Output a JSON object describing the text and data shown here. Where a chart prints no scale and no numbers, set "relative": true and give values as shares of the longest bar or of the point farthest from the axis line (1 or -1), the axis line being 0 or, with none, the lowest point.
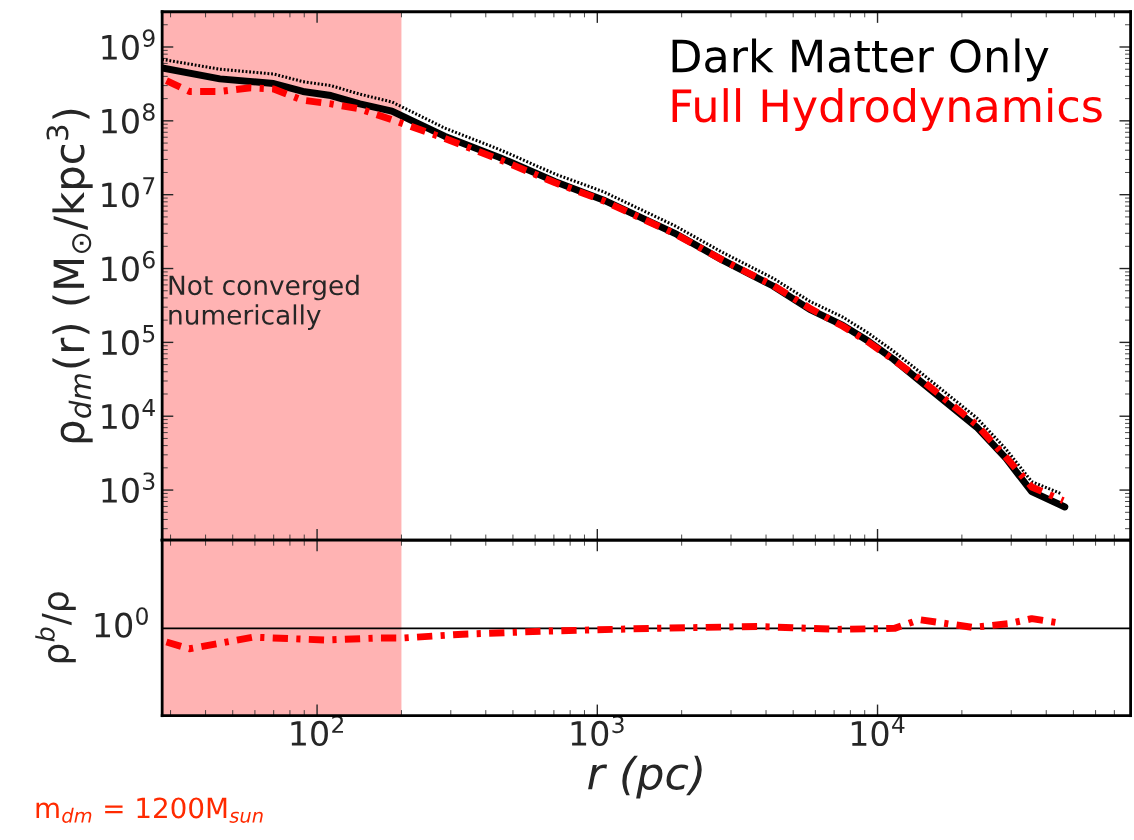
{
  "chart_data": [
    {
      "type": "line",
      "log": "xy",
      "ylabel": "ρ$_{dm}$(r) (M$_{⊙}$/kpc$^{3}$)",
      "legend": "top right",
      "tick_labels": "y",
      "grid": false,
      "xlim": [
        28,
        80000
      ],
      "xticks": [
        100,
        1000,
        10000
      ],
      "ylim": [
        210,
        3000000000
      ],
      "yticks": [
        {
          "value": 1000,
          "label": "10$^{3}$"
        },
        {
          "value": 10000,
          "label": "10$^{4}$"
        },
        {
          "value": 100000,
          "label": "10$^{5}$"
        },
        {
          "value": 1000000,
          "label": "10$^{6}$"
        },
        {
          "value": 10000000,
          "label": "10$^{7}$"
        },
        {
          "value": 100000000,
          "label": "10$^{8}$"
        },
        {
          "value": 1000000000,
          "label": "10$^{9}$"
        }
      ],
      "bands": [
        {
          "axis": "x",
          "from": 28,
          "to": 200,
          "label": "Not converged\nnumerically",
          "color": "#ffb3b3"
        }
      ],
      "series": [
        {
          "name": "Dark Matter Only",
          "color": "#000000",
          "line_style": "solid",
          "x": [
            28,
            45,
            70,
            89,
            112,
            142,
            185,
            285,
            447,
            708,
            1050,
            1890,
            2800,
            4240,
            5730,
            7520,
            9230,
            11400,
            14500,
            22600,
            28700,
            35500,
            46600
          ],
          "values": [
            520000000,
            370000000,
            320000000,
            250000000,
            220000000,
            170000000,
            135000000,
            62000000,
            32000000,
            15000000,
            8500000,
            3000000,
            1300000,
            580000,
            280000,
            170000,
            105000,
            59000,
            28000,
            7100,
            2700,
            950,
            590
          ]
        },
        {
          "color": "#000000",
          "line_style": "dotted",
          "x": [
            28,
            45,
            70,
            89,
            112,
            142,
            185,
            285,
            447,
            708,
            1050,
            1890,
            2800,
            4240,
            5730,
            7520,
            9230,
            11400,
            14500,
            22600,
            28700,
            35500,
            45000
          ],
          "values": [
            680000000,
            500000000,
            430000000,
            340000000,
            300000000,
            230000000,
            180000000,
            80000000,
            41000000,
            19000000,
            11000000,
            3800000,
            1650000,
            740000,
            360000,
            220000,
            135000,
            76000,
            37000,
            9500,
            3600,
            1300,
            900
          ]
        },
        {
          "name": "Full Hydrodynamics",
          "color": "#ff0000",
          "line_style": "dashed",
          "x": [
            29,
            35,
            45,
            58,
            70,
            89,
            112,
            142,
            190,
            285,
            447,
            708,
            1050,
            1890,
            2800,
            4240,
            5730,
            7520,
            9230,
            11400,
            14500,
            22600,
            28700,
            35500,
            46000
          ],
          "values": [
            350000000,
            250000000,
            250000000,
            280000000,
            270000000,
            190000000,
            170000000,
            145000000,
            100000000,
            58000000,
            30000000,
            14500000,
            8300000,
            2950000,
            1300000,
            590000,
            290000,
            165000,
            102000,
            58000,
            30000,
            7600,
            2800,
            1100,
            720
          ]
        }
      ]
    },
    {
      "type": "line",
      "log": "x",
      "xlabel": "r (pc)",
      "ylabel": "ρ$^{b}$/ρ",
      "grid": false,
      "xlim": [
        28,
        80000
      ],
      "xticks": [
        {
          "value": 100,
          "label": "10$^{2}$"
        },
        {
          "value": 1000,
          "label": "10$^{3}$"
        },
        {
          "value": 10000,
          "label": "10$^{4}$"
        }
      ],
      "relative": true,
      "bands": [
        {
          "axis": "x",
          "from": 28,
          "to": 200,
          "color": "#ffb3b3"
        }
      ],
      "ref_lines": [
        {
          "axis": "y",
          "value": 0.9,
          "color": "#000000"
        }
      ],
      "annotations": [
        "10$^{0}$",
        "m$_{dm}$ = 1200M$_{sun}$"
      ],
      "series": [
        {
          "color": "#ff0000",
          "line_style": "dashed",
          "x": [
            29,
            35,
            59,
            107,
            162,
            200,
            331,
            631,
            1550,
            3720,
            7240,
            11500,
            14100,
            21900,
            29500,
            35500,
            43600
          ],
          "values": [
            0.76,
            0.69,
            0.81,
            0.78,
            0.8,
            0.8,
            0.84,
            0.87,
            0.9,
            0.92,
            0.89,
            0.9,
            0.99,
            0.91,
            0.95,
            1,
            0.96
          ]
        }
      ]
    }
  ]
}
